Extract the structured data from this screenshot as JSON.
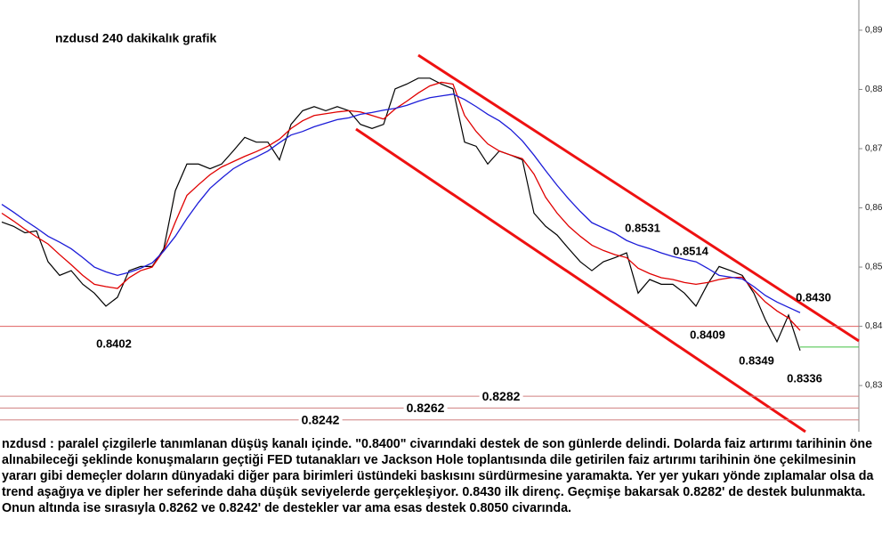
{
  "chart_data": {
    "type": "line",
    "title": "nzdusd  240 dakikalık grafik",
    "ylim": [
      0.8222,
      0.8951
    ],
    "yticks": [
      {
        "value": 0.83,
        "label": "0,83"
      },
      {
        "value": 0.84,
        "label": "0,84"
      },
      {
        "value": 0.85,
        "label": "0,85"
      },
      {
        "value": 0.86,
        "label": "0,86"
      },
      {
        "value": 0.87,
        "label": "0,87"
      },
      {
        "value": 0.88,
        "label": "0,88"
      },
      {
        "value": 0.89,
        "label": "0,89"
      }
    ],
    "series": [
      {
        "name": "nzdusd",
        "color": "#000000",
        "values": [
          0.8576,
          0.8569,
          0.8558,
          0.8561,
          0.8509,
          0.8486,
          0.8494,
          0.8471,
          0.8456,
          0.8434,
          0.8449,
          0.8494,
          0.8501,
          0.8501,
          0.8531,
          0.8629,
          0.8674,
          0.8674,
          0.8666,
          0.8674,
          0.8696,
          0.8719,
          0.8711,
          0.8711,
          0.8681,
          0.8741,
          0.8764,
          0.8771,
          0.8764,
          0.8771,
          0.8764,
          0.8741,
          0.8734,
          0.8741,
          0.8801,
          0.8809,
          0.8819,
          0.8819,
          0.8809,
          0.8801,
          0.8711,
          0.8704,
          0.8674,
          0.8696,
          0.8689,
          0.8681,
          0.8591,
          0.8569,
          0.8554,
          0.8531,
          0.8509,
          0.8494,
          0.8509,
          0.8516,
          0.8524,
          0.8456,
          0.8479,
          0.8471,
          0.8471,
          0.8456,
          0.8434,
          0.8471,
          0.8501,
          0.8494,
          0.8486,
          0.8456,
          0.8411,
          0.8374,
          0.8419,
          0.8359
        ]
      },
      {
        "color": "#e00000",
        "values": [
          0.8591,
          0.8578,
          0.8564,
          0.8551,
          0.8539,
          0.8521,
          0.8504,
          0.8486,
          0.8471,
          0.8467,
          0.8464,
          0.8482,
          0.8494,
          0.85,
          0.8528,
          0.8576,
          0.8621,
          0.8639,
          0.8656,
          0.8669,
          0.8678,
          0.8687,
          0.8695,
          0.8704,
          0.8716,
          0.8734,
          0.8747,
          0.8756,
          0.8759,
          0.8762,
          0.8764,
          0.8762,
          0.8756,
          0.875,
          0.8767,
          0.878,
          0.8794,
          0.8806,
          0.8812,
          0.8809,
          0.8756,
          0.8729,
          0.8708,
          0.8696,
          0.8689,
          0.8683,
          0.8657,
          0.8618,
          0.8591,
          0.8569,
          0.8552,
          0.8537,
          0.8528,
          0.8521,
          0.8516,
          0.8498,
          0.8489,
          0.8482,
          0.8479,
          0.8474,
          0.8471,
          0.8474,
          0.8479,
          0.8482,
          0.8483,
          0.8461,
          0.8441,
          0.8426,
          0.8414,
          0.8393
        ]
      },
      {
        "color": "#1c1cd8",
        "values": [
          0.8606,
          0.8593,
          0.8579,
          0.8566,
          0.8552,
          0.8542,
          0.8531,
          0.8516,
          0.85,
          0.8492,
          0.8486,
          0.8491,
          0.8498,
          0.8507,
          0.8527,
          0.8552,
          0.8582,
          0.8609,
          0.8633,
          0.865,
          0.8666,
          0.8677,
          0.8686,
          0.8696,
          0.871,
          0.8723,
          0.8729,
          0.8737,
          0.8743,
          0.8749,
          0.8752,
          0.8758,
          0.8761,
          0.8765,
          0.8768,
          0.8773,
          0.878,
          0.8786,
          0.8789,
          0.8792,
          0.8783,
          0.8771,
          0.8758,
          0.8747,
          0.8732,
          0.8713,
          0.8689,
          0.8663,
          0.8638,
          0.8615,
          0.8594,
          0.8575,
          0.8566,
          0.8557,
          0.8545,
          0.8537,
          0.8531,
          0.8524,
          0.8518,
          0.8513,
          0.8509,
          0.8498,
          0.8486,
          0.8483,
          0.848,
          0.8467,
          0.8452,
          0.8441,
          0.8432,
          0.8423
        ]
      }
    ],
    "reference_lines": [
      {
        "value": 0.84,
        "color": "#e06060"
      },
      {
        "value": 0.8282,
        "color": "#d08080",
        "label": 0.8282
      },
      {
        "value": 0.8262,
        "color": "#d08080",
        "label": 0.8262
      },
      {
        "value": 0.8242,
        "color": "#d08080",
        "label": 0.8242
      },
      {
        "value": 0.8365,
        "color": "#40c040"
      }
    ],
    "price_labels": [
      0.8402,
      0.8531,
      0.8514,
      0.8409,
      0.8349,
      0.8336,
      {
        "value": 0.843,
        "label": "0.8430"
      }
    ]
  },
  "commentary": "nzdusd : paralel çizgilerle tanımlanan düşüş kanalı içinde. \"0.8400\" civarındaki destek de son günlerde delindi. Dolarda faiz artırımı tarihinin öne alınabileceği şeklinde konuşmaların geçtiği FED tutanakları ve Jackson Hole toplantısında dile getirilen faiz artırımı tarihinin öne çekilmesinin yararı gibi demeçler doların dünyadaki diğer para birimleri üstündeki baskısını sürdürmesine yaramakta. Yer yer yukarı yönde zıplamalar olsa da trend aşağıya ve dipler her seferinde daha düşük seviyelerde gerçekleşiyor. 0.8430 ilk direnç. Geçmişe bakarsak 0.8282' de destek bulunmakta. Onun altında ise sırasıyla 0.8262 ve 0.8242' de destekler var ama esas destek 0.8050 civarında."
}
